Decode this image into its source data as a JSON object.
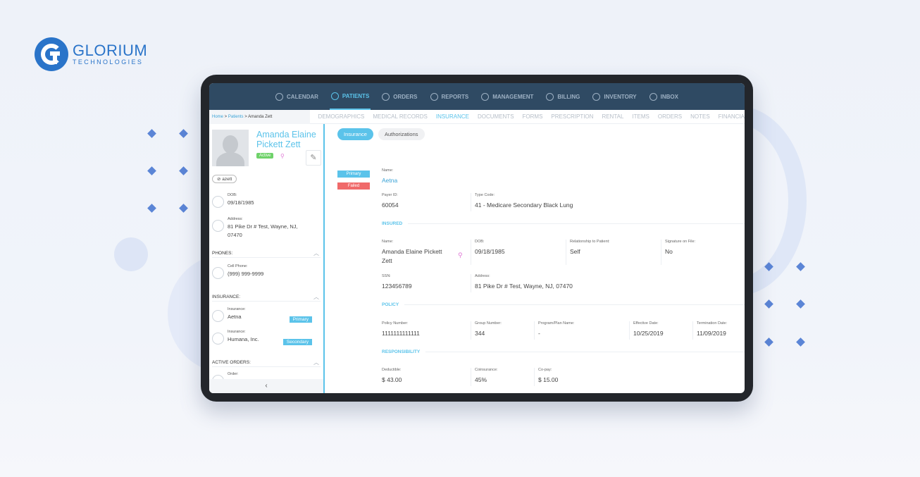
{
  "brand": {
    "title": "GLORIUM",
    "subtitle": "TECHNOLOGIES",
    "color": "#2a74c9"
  },
  "nav": [
    {
      "label": "CALENDAR",
      "icon": "calendar-icon",
      "active": false
    },
    {
      "label": "PATIENTS",
      "icon": "patients-icon",
      "active": true
    },
    {
      "label": "ORDERS",
      "icon": "orders-icon",
      "active": false
    },
    {
      "label": "REPORTS",
      "icon": "reports-icon",
      "active": false
    },
    {
      "label": "MANAGEMENT",
      "icon": "management-icon",
      "active": false
    },
    {
      "label": "BILLING",
      "icon": "billing-icon",
      "active": false
    },
    {
      "label": "INVENTORY",
      "icon": "inventory-icon",
      "active": false
    },
    {
      "label": "INBOX",
      "icon": "inbox-icon",
      "active": false
    }
  ],
  "breadcrumb": {
    "home": "Home",
    "sep1": " > ",
    "patients": "Patients",
    "sep2": " > ",
    "current": "Amanda Zett"
  },
  "tabs": [
    "DEMOGRAPHICS",
    "MEDICAL RECORDS",
    "INSURANCE",
    "DOCUMENTS",
    "FORMS",
    "PRESCRIPTION",
    "RENTAL",
    "ITEMS",
    "ORDERS",
    "NOTES",
    "FINANCIA"
  ],
  "active_tab": "INSURANCE",
  "patient": {
    "name": "Amanda Elaine Pickett Zett",
    "status": "Active",
    "tag": "azett",
    "dob_label": "DOB:",
    "dob": "09/18/1985",
    "address_label": "Address:",
    "address": "81 Pike Dr # Test, Wayne, NJ, 07470"
  },
  "phones": {
    "title": "PHONES:",
    "label": "Cell Phone:",
    "value": "(999) 999-9999"
  },
  "insurance_panel": {
    "title": "INSURANCE:",
    "items": [
      {
        "label": "Insurance:",
        "value": "Aetna",
        "badge": "Primary"
      },
      {
        "label": "Insurance:",
        "value": "Humana, Inc.",
        "badge": "Secondary"
      }
    ]
  },
  "orders_panel": {
    "title": "ACTIVE ORDERS:",
    "label": "Order:"
  },
  "collapse_glyph": "‹",
  "subtabs": {
    "active": "Insurance",
    "other": "Authorizations"
  },
  "status": {
    "primary": "Primary",
    "failed": "Failed",
    "primary_color": "#5bc3ea",
    "failed_color": "#f06a6a"
  },
  "policy_main": {
    "name_label": "Name:",
    "name": "Aetna",
    "payer_label": "Payer ID:",
    "payer": "60054",
    "type_label": "Type Code:",
    "type": "41 - Medicare Secondary Black Lung"
  },
  "insured": {
    "title": "INSURED",
    "name_label": "Name:",
    "name": "Amanda Elaine Pickett Zett",
    "dob_label": "DOB:",
    "dob": "09/18/1985",
    "rel_label": "Relationship to Patient:",
    "rel": "Self",
    "sig_label": "Signature on File:",
    "sig": "No",
    "ssn_label": "SSN:",
    "ssn": "123456789",
    "addr_label": "Address:",
    "addr": "81 Pike Dr # Test, Wayne, NJ, 07470"
  },
  "policy": {
    "title": "POLICY",
    "num_label": "Policy Number:",
    "num": "1111111111111",
    "group_label": "Group Number:",
    "group": "344",
    "plan_label": "Program/Plan Name:",
    "plan": "-",
    "eff_label": "Effective Date:",
    "eff": "10/25/2019",
    "term_label": "Termination Date:",
    "term": "11/09/2019"
  },
  "responsibility": {
    "title": "RESPONSIBILITY",
    "ded_label": "Deductible:",
    "ded": "$ 43.00",
    "coins_label": "Coinsurance:",
    "coins": "45%",
    "copay_label": "Co-pay:",
    "copay": "$ 15.00"
  }
}
